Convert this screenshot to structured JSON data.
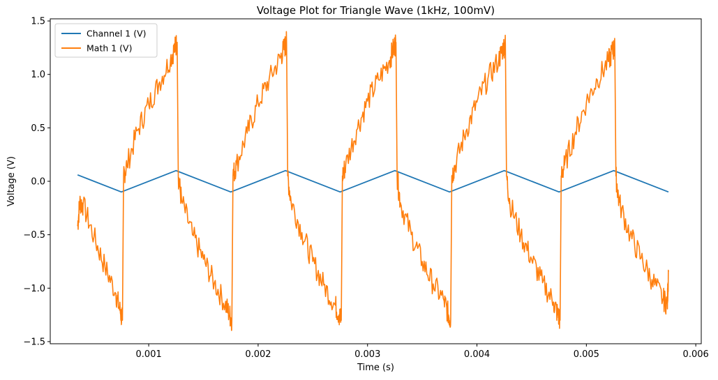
{
  "chart_data": {
    "type": "line",
    "title": "Voltage Plot for Triangle Wave (1kHz, 100mV)",
    "xlabel": "Time (s)",
    "ylabel": "Voltage (V)",
    "xlim": [
      0.0001,
      0.00605
    ],
    "ylim": [
      -1.52,
      1.52
    ],
    "xticks": [
      0.001,
      0.002,
      0.003,
      0.004,
      0.005,
      0.006
    ],
    "xtick_labels": [
      "0.001",
      "0.002",
      "0.003",
      "0.004",
      "0.005",
      "0.006"
    ],
    "yticks": [
      -1.5,
      -1.0,
      -0.5,
      0.0,
      0.5,
      1.0,
      1.5
    ],
    "ytick_labels": [
      "−1.5",
      "−1.0",
      "−0.5",
      "0.0",
      "0.5",
      "1.0",
      "1.5"
    ],
    "grid": false,
    "legend_position": "upper-left",
    "series": [
      {
        "name": "Channel 1 (V)",
        "color": "#1f77b4",
        "x": [
          0.00035,
          0.00075,
          0.00125,
          0.00175,
          0.00225,
          0.00275,
          0.00325,
          0.00375,
          0.00425,
          0.00475,
          0.00525,
          0.00575
        ],
        "y": [
          0.06,
          -0.1,
          0.1,
          -0.1,
          0.1,
          -0.1,
          0.1,
          -0.1,
          0.1,
          -0.1,
          0.1,
          -0.1
        ]
      },
      {
        "name": "Math 1 (V)",
        "color": "#ff7f0e",
        "x": [
          0.00035,
          0.00037,
          0.0004,
          0.0005,
          0.0006,
          0.0007,
          0.00074,
          0.00076,
          0.00077,
          0.0008,
          0.0009,
          0.001,
          0.0011,
          0.0012,
          0.00124,
          0.00126,
          0.00127,
          0.0013,
          0.0014,
          0.0015,
          0.0016,
          0.0017,
          0.00174,
          0.00176,
          0.00177,
          0.0018,
          0.0019,
          0.002,
          0.0021,
          0.0022,
          0.00224,
          0.00226,
          0.00227,
          0.0023,
          0.0024,
          0.0025,
          0.0026,
          0.0027,
          0.00274,
          0.00276,
          0.00277,
          0.0028,
          0.0029,
          0.003,
          0.0031,
          0.0032,
          0.00324,
          0.00326,
          0.00327,
          0.0033,
          0.0034,
          0.0035,
          0.0036,
          0.0037,
          0.00374,
          0.00376,
          0.00377,
          0.0038,
          0.0039,
          0.004,
          0.0041,
          0.0042,
          0.00424,
          0.00426,
          0.00427,
          0.0043,
          0.0044,
          0.0045,
          0.0046,
          0.0047,
          0.00474,
          0.00476,
          0.00477,
          0.0048,
          0.0049,
          0.005,
          0.0051,
          0.0052,
          0.00524,
          0.00526,
          0.00527,
          0.0053,
          0.0054,
          0.0055,
          0.0056,
          0.0057,
          0.00574,
          0.00575
        ],
        "y": [
          -0.42,
          -0.2,
          -0.22,
          -0.52,
          -0.8,
          -1.05,
          -1.22,
          -1.3,
          0.05,
          0.15,
          0.48,
          0.72,
          0.93,
          1.15,
          1.25,
          1.3,
          0.05,
          -0.18,
          -0.5,
          -0.73,
          -0.95,
          -1.15,
          -1.25,
          -1.3,
          0.05,
          0.15,
          0.45,
          0.73,
          0.95,
          1.15,
          1.25,
          1.3,
          0.05,
          -0.18,
          -0.48,
          -0.75,
          -0.97,
          -1.15,
          -1.25,
          -1.3,
          0.05,
          0.15,
          0.48,
          0.75,
          0.95,
          1.13,
          1.25,
          1.3,
          0.05,
          -0.2,
          -0.5,
          -0.75,
          -0.96,
          -1.12,
          -1.25,
          -1.3,
          0.05,
          0.15,
          0.47,
          0.74,
          0.96,
          1.14,
          1.25,
          1.28,
          0.05,
          -0.2,
          -0.5,
          -0.73,
          -0.95,
          -1.13,
          -1.25,
          -1.3,
          0.05,
          0.15,
          0.46,
          0.74,
          0.95,
          1.12,
          1.22,
          1.25,
          0.05,
          -0.2,
          -0.5,
          -0.72,
          -0.92,
          -1.1,
          -1.15,
          -0.85
        ]
      }
    ]
  }
}
